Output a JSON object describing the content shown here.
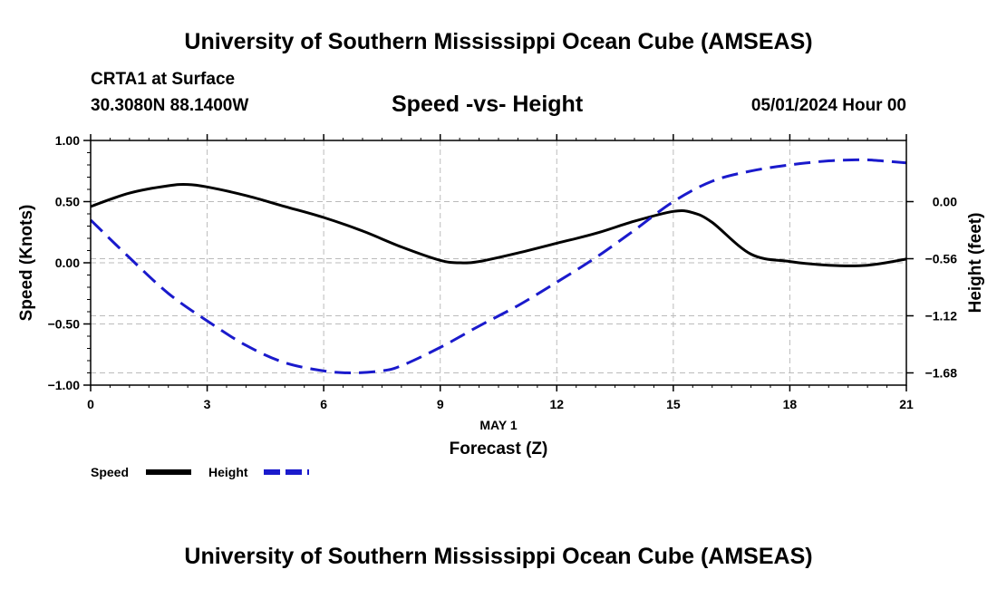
{
  "header": {
    "title_top": "University of Southern Mississippi Ocean Cube (AMSEAS)",
    "station": "CRTA1 at Surface",
    "coords": "30.3080N  88.1400W",
    "subtitle": "Speed -vs- Height",
    "datetime": "05/01/2024 Hour 00",
    "title_bottom": "University of Southern Mississippi Ocean Cube (AMSEAS)"
  },
  "colors": {
    "speed": "#000000",
    "height": "#1a1acc",
    "grid": "#bbbbbb"
  },
  "chart_data": {
    "type": "line",
    "title": "Speed -vs- Height",
    "date_label": "MAY 1",
    "xlabel": "Forecast (Z)",
    "ylabel_left": "Speed (Knots)",
    "ylabel_right": "Height (feet)",
    "xlim": [
      0,
      21
    ],
    "ylim_left": [
      -1.0,
      1.0
    ],
    "ylim_right": [
      -1.8,
      0.6
    ],
    "x_ticks": [
      0,
      3,
      6,
      9,
      12,
      15,
      18,
      21
    ],
    "x_tick_labels": [
      "0",
      "3",
      "6",
      "9",
      "12",
      "15",
      "18",
      "21"
    ],
    "y_left_ticks": [
      1.0,
      0.5,
      0.0,
      -0.5,
      -1.0
    ],
    "y_left_tick_labels": [
      "1.00",
      "0.50",
      "0.00",
      "−0.50",
      "−1.00"
    ],
    "y_right_ticks": [
      0.0,
      -0.56,
      -1.12,
      -1.68
    ],
    "y_right_tick_labels": [
      "0.00",
      "−0.56",
      "−1.12",
      "−1.68"
    ],
    "legend": [
      "Speed",
      "Height"
    ],
    "series": [
      {
        "name": "Speed",
        "axis": "left",
        "style": "solid",
        "x": [
          0,
          1,
          2,
          2.5,
          3,
          4,
          5,
          6,
          7,
          8,
          9,
          9.5,
          10,
          11,
          12,
          13,
          14,
          15,
          15.5,
          16,
          17,
          18,
          19,
          20,
          21
        ],
        "y": [
          0.46,
          0.57,
          0.63,
          0.64,
          0.62,
          0.55,
          0.46,
          0.37,
          0.26,
          0.13,
          0.02,
          0.0,
          0.01,
          0.08,
          0.16,
          0.24,
          0.34,
          0.42,
          0.41,
          0.33,
          0.07,
          0.01,
          -0.02,
          -0.02,
          0.03
        ]
      },
      {
        "name": "Height",
        "axis": "right",
        "style": "dashed",
        "x": [
          0,
          1,
          2,
          3,
          4,
          5,
          6,
          6.7,
          7.5,
          8,
          9,
          10,
          11,
          12,
          13,
          14,
          15,
          16,
          17,
          18,
          19,
          19.7,
          20,
          21
        ],
        "y": [
          -0.18,
          -0.55,
          -0.9,
          -1.17,
          -1.41,
          -1.58,
          -1.66,
          -1.68,
          -1.66,
          -1.61,
          -1.43,
          -1.22,
          -1.02,
          -0.79,
          -0.55,
          -0.28,
          0.0,
          0.2,
          0.3,
          0.36,
          0.4,
          0.41,
          0.41,
          0.38
        ]
      }
    ]
  }
}
